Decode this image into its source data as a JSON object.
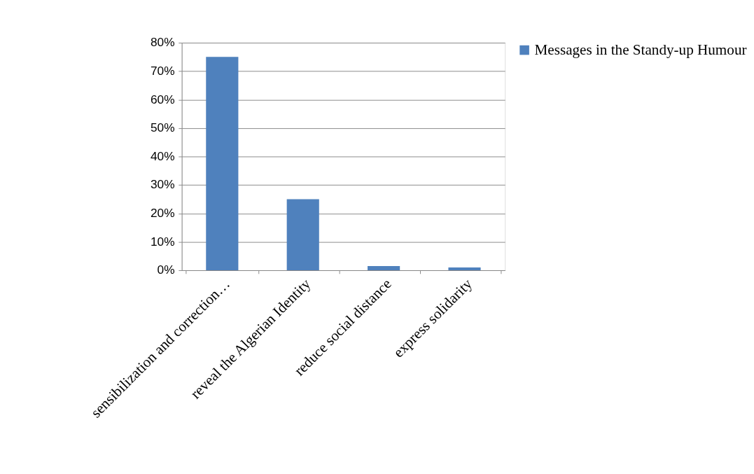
{
  "chart_data": {
    "type": "bar",
    "categories": [
      "sensibilization and correction…",
      "reveal the Algerian Identity",
      "reduce social distance",
      "express solidarity"
    ],
    "series": [
      {
        "name": "Messages in the Standy-up Humour",
        "color": "#4f81bd",
        "values": [
          75,
          25,
          1.5,
          1
        ]
      }
    ],
    "ylim": [
      0,
      80
    ],
    "yticks": [
      {
        "value": 0,
        "label": "0%"
      },
      {
        "value": 10,
        "label": "10%"
      },
      {
        "value": 20,
        "label": "20%"
      },
      {
        "value": 30,
        "label": "30%"
      },
      {
        "value": 40,
        "label": "40%"
      },
      {
        "value": 50,
        "label": "50%"
      },
      {
        "value": 60,
        "label": "60%"
      },
      {
        "value": 70,
        "label": "70%"
      },
      {
        "value": 80,
        "label": "80%"
      }
    ],
    "grid": "y",
    "legend": "right"
  }
}
